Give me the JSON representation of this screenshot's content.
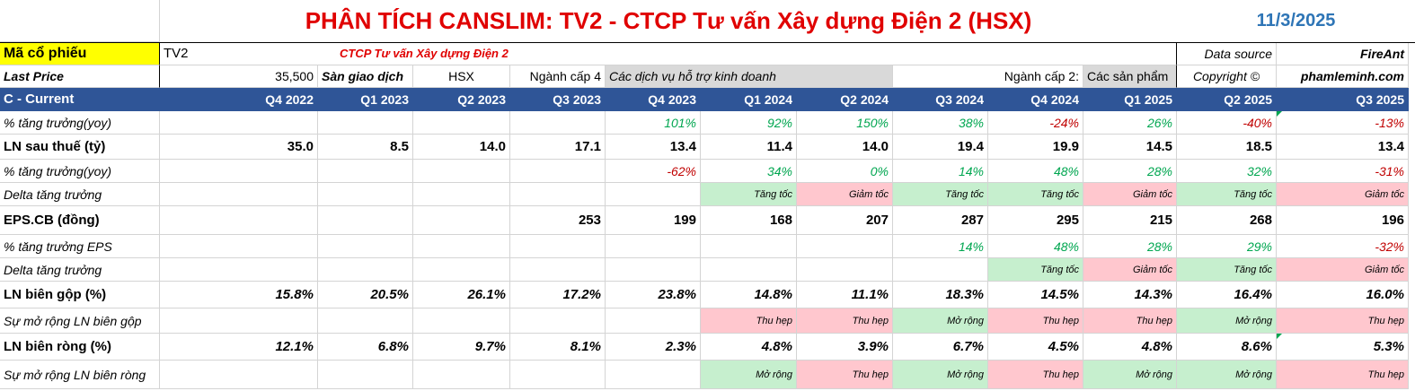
{
  "header": {
    "title": "PHÂN TÍCH CANSLIM: TV2 - CTCP Tư vấn Xây dựng Điện 2 (HSX)",
    "date": "11/3/2025"
  },
  "info": {
    "ticker_label": "Mã cổ phiếu",
    "ticker": "TV2",
    "company": "CTCP Tư vấn Xây dựng Điện 2",
    "data_source_label": "Data source",
    "data_source": "FireAnt",
    "last_price_label": "Last Price",
    "last_price": "35,500",
    "exchange_label": "Sàn giao dịch",
    "exchange": "HSX",
    "sector4_label": "Ngành cấp 4",
    "sector4": "Các dịch vụ hỗ trợ kinh doanh",
    "sector2_label": "Ngành cấp 2:",
    "sector2": "Các sản phẩm",
    "copyright_label": "Copyright ©",
    "copyright": "phamleminh.com"
  },
  "table": {
    "current_label": "C - Current",
    "quarters": [
      "Q4 2022",
      "Q1 2023",
      "Q2 2023",
      "Q3 2023",
      "Q4 2023",
      "Q1 2024",
      "Q2 2024",
      "Q3 2024",
      "Q4 2024",
      "Q1 2025",
      "Q2 2025",
      "Q3 2025"
    ],
    "rows": [
      {
        "label": "% tăng trưởng(yoy)",
        "kind": "pct",
        "values": [
          "",
          "",
          "",
          "",
          "101%",
          "92%",
          "150%",
          "38%",
          "-24%",
          "26%",
          "-40%",
          "-13%"
        ]
      },
      {
        "label": "LN sau thuế (tỷ)",
        "kind": "bold",
        "values": [
          "35.0",
          "8.5",
          "14.0",
          "17.1",
          "13.4",
          "11.4",
          "14.0",
          "19.4",
          "19.9",
          "14.5",
          "18.5",
          "13.4"
        ]
      },
      {
        "label": "% tăng trưởng(yoy)",
        "kind": "pct",
        "values": [
          "",
          "",
          "",
          "",
          "-62%",
          "34%",
          "0%",
          "14%",
          "48%",
          "28%",
          "32%",
          "-31%"
        ]
      },
      {
        "label": "Delta tăng trưởng",
        "kind": "tag",
        "values": [
          "",
          "",
          "",
          "",
          "",
          "Tăng tốc",
          "Giảm tốc",
          "Tăng tốc",
          "Tăng tốc",
          "Giảm tốc",
          "Tăng tốc",
          "Giảm tốc"
        ]
      },
      {
        "label": "EPS.CB (đồng)",
        "kind": "bold",
        "values": [
          "",
          "",
          "",
          "253",
          "199",
          "168",
          "207",
          "287",
          "295",
          "215",
          "268",
          "196"
        ]
      },
      {
        "label": "% tăng trưởng EPS",
        "kind": "pct",
        "values": [
          "",
          "",
          "",
          "",
          "",
          "",
          "",
          "14%",
          "48%",
          "28%",
          "29%",
          "-32%"
        ]
      },
      {
        "label": "Delta tăng trưởng",
        "kind": "tag",
        "values": [
          "",
          "",
          "",
          "",
          "",
          "",
          "",
          "",
          "Tăng tốc",
          "Giảm tốc",
          "Tăng tốc",
          "Giảm tốc"
        ]
      },
      {
        "label": "LN biên gộp (%)",
        "kind": "bi",
        "values": [
          "15.8%",
          "20.5%",
          "26.1%",
          "17.2%",
          "23.8%",
          "14.8%",
          "11.1%",
          "18.3%",
          "14.5%",
          "14.3%",
          "16.4%",
          "16.0%"
        ]
      },
      {
        "label": "Sự mở rộng LN biên gộp",
        "kind": "tag",
        "values": [
          "",
          "",
          "",
          "",
          "",
          "Thu hẹp",
          "Thu hẹp",
          "Mở rộng",
          "Thu hẹp",
          "Thu hẹp",
          "Mở rộng",
          "Thu hẹp"
        ]
      },
      {
        "label": "LN biên ròng (%)",
        "kind": "bi",
        "values": [
          "12.1%",
          "6.8%",
          "9.7%",
          "8.1%",
          "2.3%",
          "4.8%",
          "3.9%",
          "6.7%",
          "4.5%",
          "4.8%",
          "8.6%",
          "5.3%"
        ]
      },
      {
        "label": "Sự mở rộng LN biên ròng",
        "kind": "tag",
        "values": [
          "",
          "",
          "",
          "",
          "",
          "Mở rộng",
          "Thu hẹp",
          "Mở rộng",
          "Thu hẹp",
          "Mở rộng",
          "Mở rộng",
          "Thu hẹp"
        ]
      }
    ]
  },
  "colors": {
    "title": "#e00000",
    "date": "#2e75b6",
    "header_band": "#2f5597",
    "positive": "#00a650",
    "negative": "#c00000",
    "tag_green": "#c6efce",
    "tag_red": "#ffc7ce",
    "label_yellow": "#ffff00"
  }
}
